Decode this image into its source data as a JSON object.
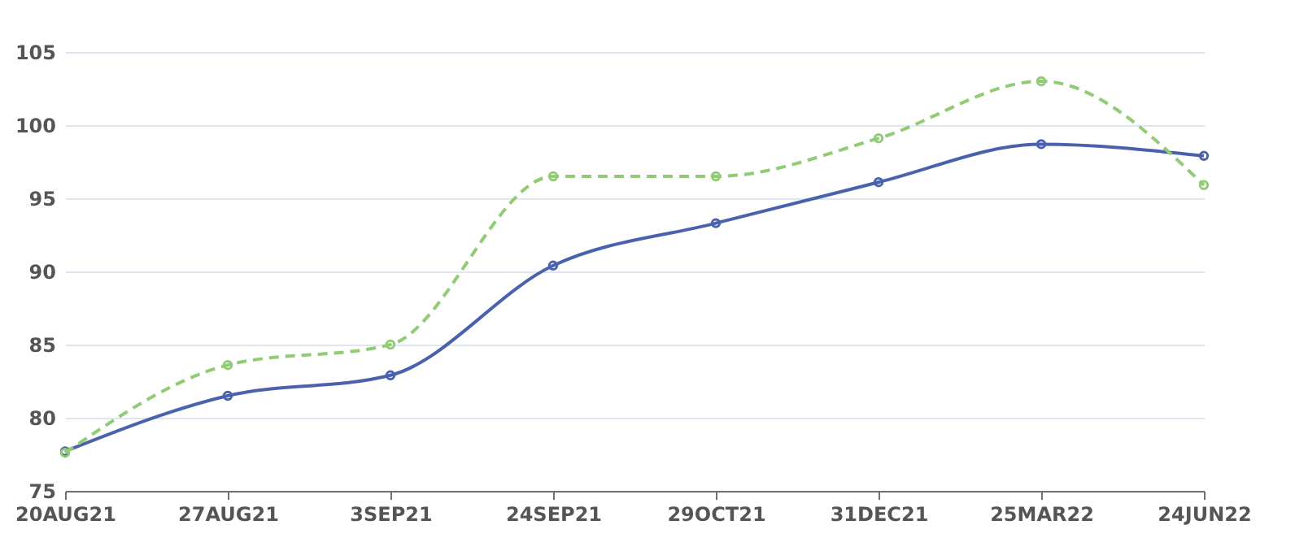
{
  "chart_data": {
    "type": "line",
    "categories": [
      "20AUG21",
      "27AUG21",
      "3SEP21",
      "24SEP21",
      "29OCT21",
      "31DEC21",
      "25MAR22",
      "24JUN22"
    ],
    "series": [
      {
        "color": "#4a62ae",
        "line_style": "solid",
        "values": [
          77.7,
          81.5,
          82.9,
          90.4,
          93.3,
          96.1,
          98.7,
          97.9
        ]
      },
      {
        "color": "#91cc75",
        "line_style": "dashed",
        "values": [
          77.6,
          83.6,
          85.0,
          96.5,
          96.5,
          99.1,
          103.0,
          95.9
        ]
      }
    ],
    "ylim": [
      75,
      105
    ],
    "yticks": [
      75,
      80,
      85,
      90,
      95,
      100,
      105
    ],
    "grid": "y",
    "marker": "circle"
  }
}
